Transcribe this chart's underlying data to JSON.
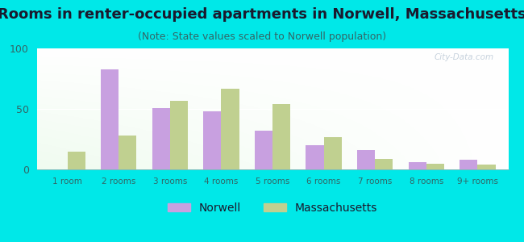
{
  "title": "Rooms in renter-occupied apartments in Norwell, Massachusetts",
  "subtitle": "(Note: State values scaled to Norwell population)",
  "categories": [
    "1 room",
    "2 rooms",
    "3 rooms",
    "4 rooms",
    "5 rooms",
    "6 rooms",
    "7 rooms",
    "8 rooms",
    "9+ rooms"
  ],
  "norwell": [
    0,
    83,
    51,
    48,
    32,
    20,
    16,
    6,
    8
  ],
  "massachusetts": [
    15,
    28,
    57,
    67,
    54,
    27,
    9,
    5,
    4
  ],
  "norwell_color": "#c8a0e0",
  "massachusetts_color": "#c0d090",
  "background_color": "#00e8e8",
  "ylim": [
    0,
    100
  ],
  "yticks": [
    0,
    50,
    100
  ],
  "bar_width": 0.35,
  "title_fontsize": 13,
  "subtitle_fontsize": 9,
  "legend_fontsize": 10,
  "title_color": "#1a1a2e",
  "subtitle_color": "#336666",
  "tick_color": "#336666",
  "watermark": "City-Data.com"
}
